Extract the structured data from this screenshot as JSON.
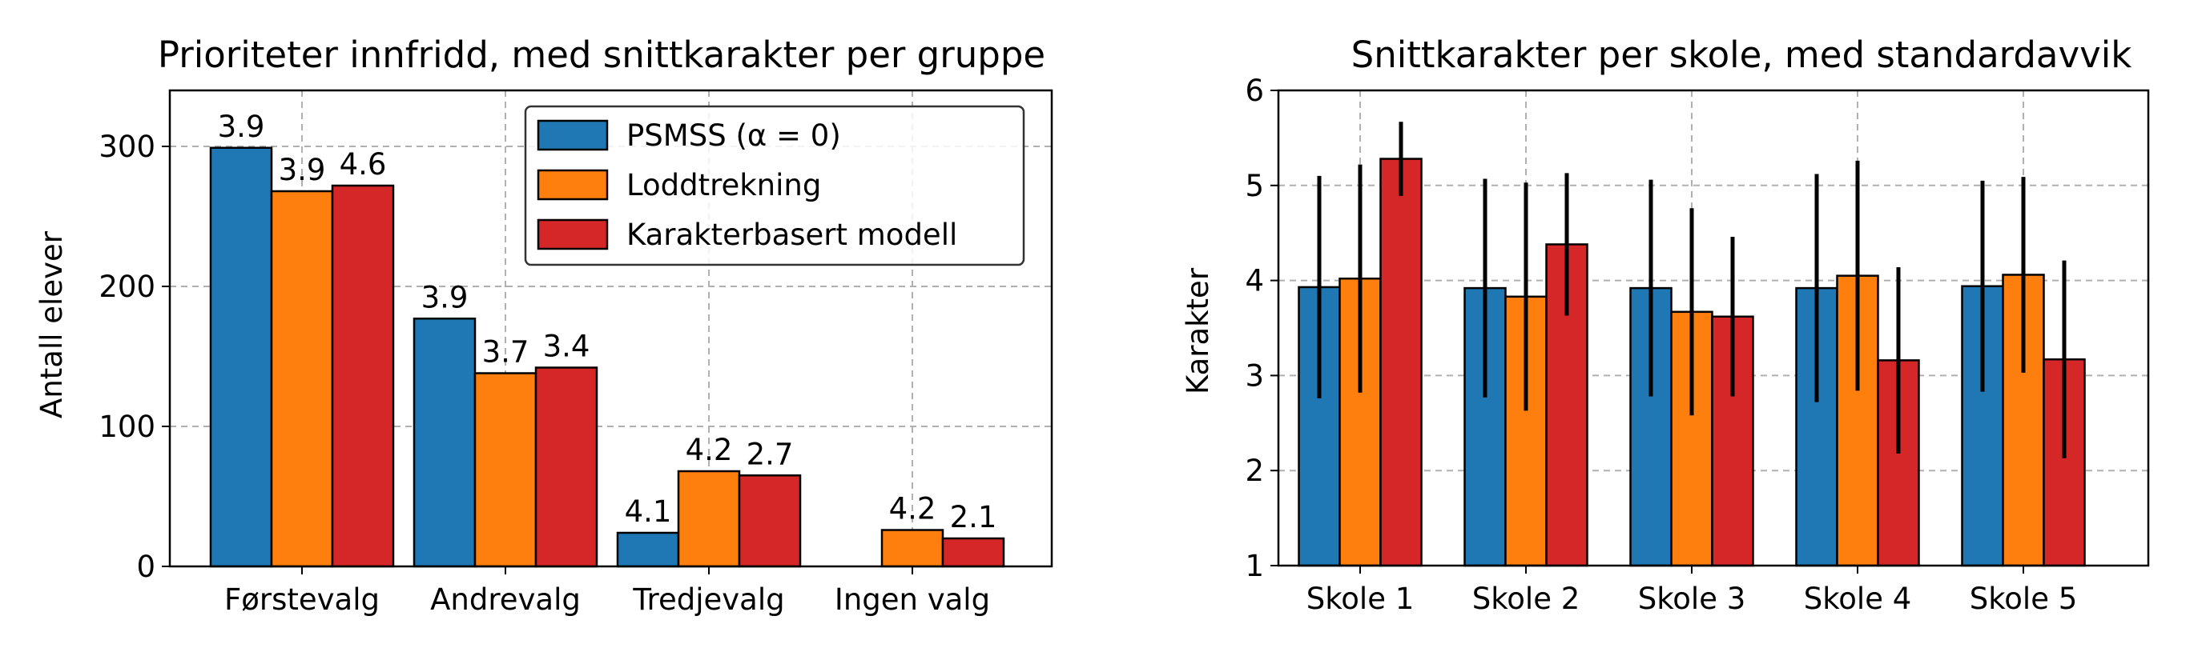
{
  "colors": {
    "psmss": "#1f77b4",
    "lodd": "#ff7f0e",
    "karakter": "#d62728",
    "grid": "#b0b0b0",
    "axis": "#000000"
  },
  "chart_data": [
    {
      "type": "bar",
      "title": "Prioriteter innfridd, med snittkarakter per gruppe",
      "xlabel": "",
      "ylabel": "Antall elever",
      "ylim": [
        0,
        340
      ],
      "yticks": [
        0,
        100,
        200,
        300
      ],
      "grid": true,
      "legend_position": "top-right",
      "categories": [
        "Førstevalg",
        "Andrevalg",
        "Tredjevalg",
        "Ingen valg"
      ],
      "series": [
        {
          "name": "PSMSS (α = 0)",
          "color_key": "psmss",
          "values": [
            299,
            177,
            24,
            0
          ],
          "labels": [
            "3.9",
            "3.9",
            "4.1",
            ""
          ]
        },
        {
          "name": "Loddtrekning",
          "color_key": "lodd",
          "values": [
            268,
            138,
            68,
            26
          ],
          "labels": [
            "3.9",
            "3.7",
            "4.2",
            "4.2"
          ]
        },
        {
          "name": "Karakterbasert modell",
          "color_key": "karakter",
          "values": [
            272,
            142,
            65,
            20
          ],
          "labels": [
            "4.6",
            "3.4",
            "2.7",
            "2.1"
          ]
        }
      ]
    },
    {
      "type": "bar",
      "title": "Snittkarakter per skole, med standardavvik",
      "xlabel": "",
      "ylabel": "Karakter",
      "ylim": [
        1,
        6
      ],
      "yticks": [
        1,
        2,
        3,
        4,
        5,
        6
      ],
      "grid": true,
      "categories": [
        "Skole 1",
        "Skole 2",
        "Skole 3",
        "Skole 4",
        "Skole 5"
      ],
      "series": [
        {
          "color_key": "psmss",
          "values": [
            3.93,
            3.92,
            3.92,
            3.92,
            3.94
          ],
          "err": [
            1.17,
            1.15,
            1.14,
            1.2,
            1.11
          ]
        },
        {
          "color_key": "lodd",
          "values": [
            4.02,
            3.83,
            3.67,
            4.05,
            4.06
          ],
          "err": [
            1.2,
            1.2,
            1.09,
            1.21,
            1.03
          ]
        },
        {
          "color_key": "karakter",
          "values": [
            5.28,
            4.38,
            3.62,
            3.16,
            3.17
          ],
          "err": [
            0.39,
            0.75,
            0.84,
            0.98,
            1.04
          ]
        }
      ]
    }
  ]
}
